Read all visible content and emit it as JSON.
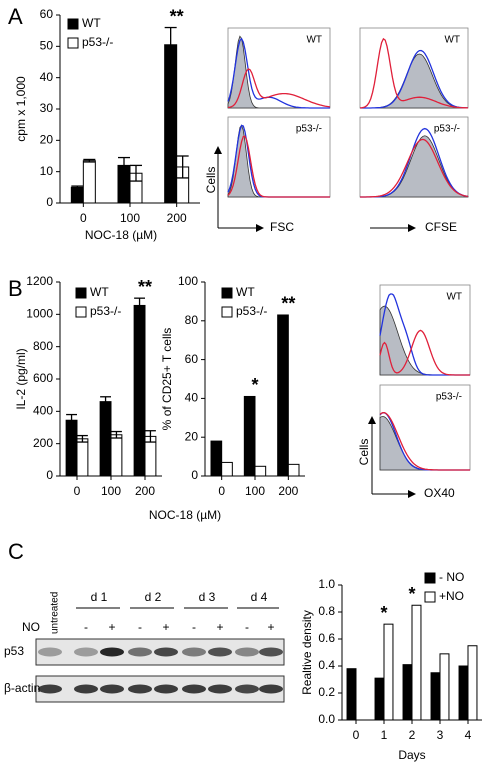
{
  "panel_labels": [
    "A",
    "B",
    "C"
  ],
  "chart_data": [
    {
      "type": "bar",
      "y_label": "cpm x 1,000",
      "x_label": "NOC-18 (µM)",
      "categories": [
        "0",
        "100",
        "200"
      ],
      "ylim": [
        0,
        60
      ],
      "yticks": [
        0,
        10,
        20,
        30,
        40,
        50,
        60
      ],
      "series": [
        {
          "name": "WT",
          "color": "#000000",
          "values": [
            5,
            12,
            50.5
          ],
          "errors": [
            0.4,
            2.5,
            5.5
          ]
        },
        {
          "name": "p53-/-",
          "color": "#ffffff",
          "values": [
            13.5,
            9.5,
            11.5
          ],
          "errors": [
            0.4,
            2.5,
            3.5
          ]
        }
      ],
      "annotations": [
        {
          "text": "**",
          "x": "200"
        }
      ]
    },
    {
      "type": "bar",
      "y_label": "IL-2 (pg/ml)",
      "x_label": "NOC-18 (µM)",
      "categories": [
        "0",
        "100",
        "200"
      ],
      "ylim": [
        0,
        1200
      ],
      "yticks": [
        0,
        200,
        400,
        600,
        800,
        1000,
        1200
      ],
      "series": [
        {
          "name": "WT",
          "color": "#000000",
          "values": [
            345,
            460,
            1055
          ],
          "errors": [
            35,
            30,
            45
          ]
        },
        {
          "name": "p53-/-",
          "color": "#ffffff",
          "values": [
            230,
            255,
            245
          ],
          "errors": [
            20,
            20,
            35
          ]
        }
      ],
      "annotations": [
        {
          "text": "**",
          "x": "200"
        }
      ]
    },
    {
      "type": "bar",
      "y_label": "% of CD25+ T cells",
      "categories": [
        "0",
        "100",
        "200"
      ],
      "ylim": [
        0,
        100
      ],
      "yticks": [
        0,
        20,
        40,
        60,
        80,
        100
      ],
      "series": [
        {
          "name": "WT",
          "color": "#000000",
          "values": [
            18,
            41,
            83
          ]
        },
        {
          "name": "p53-/-",
          "color": "#ffffff",
          "values": [
            7,
            5,
            6
          ]
        }
      ],
      "annotations": [
        {
          "text": "*",
          "x": "100"
        },
        {
          "text": "**",
          "x": "200"
        }
      ]
    },
    {
      "type": "bar",
      "y_label": "Realtive density",
      "x_label": "Days",
      "categories": [
        "0",
        "1",
        "2",
        "3",
        "4"
      ],
      "ylim": [
        0,
        1
      ],
      "yticks": [
        {
          "value": 0,
          "label": "0.0"
        },
        0.2,
        0.4,
        0.6,
        0.8,
        {
          "value": 1,
          "label": "1.0"
        }
      ],
      "series": [
        {
          "name": "- NO",
          "color": "#000000",
          "values": [
            0.38,
            0.31,
            0.41,
            0.35,
            0.4
          ]
        },
        {
          "name": "+NO",
          "color": "#ffffff",
          "values": [
            null,
            0.71,
            0.85,
            0.49,
            0.55
          ]
        }
      ],
      "annotations": [
        {
          "text": "*",
          "x": "1"
        },
        {
          "text": "*",
          "x": "2"
        }
      ]
    }
  ],
  "flow_a": {
    "panels": [
      "WT",
      "WT",
      "p53-/-",
      "p53-/-"
    ],
    "y_label": "Cells",
    "x_labels": [
      "FSC",
      "CFSE"
    ]
  },
  "flow_b": {
    "panels": [
      "WT",
      "p53-/-"
    ],
    "y_label": "Cells",
    "x_label": "OX40"
  },
  "blot": {
    "groups": [
      "untreated",
      "d 1",
      "d 2",
      "d 3",
      "d 4"
    ],
    "treatment_label": "NO",
    "treatment": [
      "-",
      "+",
      "-",
      "+",
      "-",
      "+",
      "-",
      "+"
    ],
    "rows": [
      "p53",
      "β-actin"
    ]
  }
}
